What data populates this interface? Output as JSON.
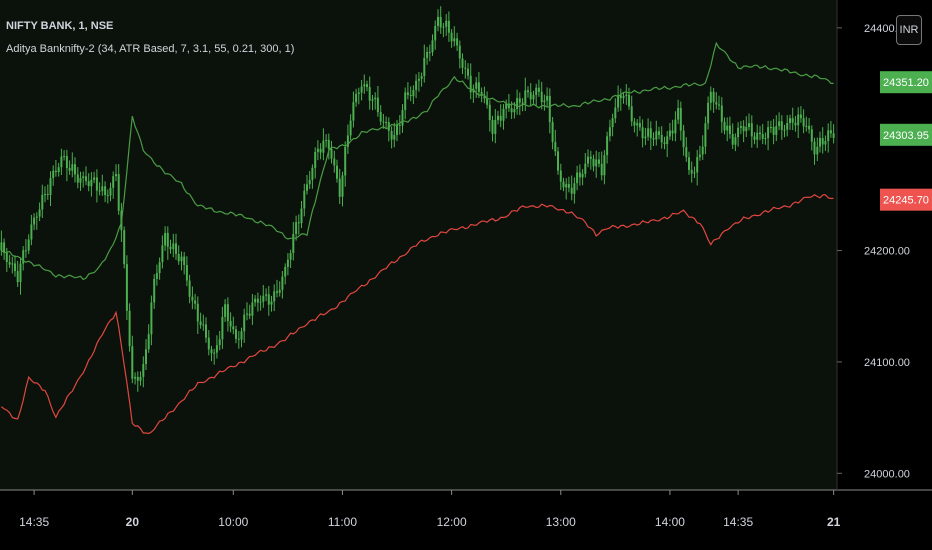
{
  "header": {
    "symbol_title": "NIFTY BANK, 1, NSE",
    "indicator_title": "Aditya Banknifty-2 (34, ATR Based, 7, 3.1, 55, 0.21, 300, 1)",
    "currency_label": "INR"
  },
  "colors": {
    "background": "#000000",
    "plot_background": "#0b120b",
    "candle": "#4caf50",
    "upper_line": "#4a9d44",
    "lower_line": "#e0473f",
    "axis_text": "#d1d4dc",
    "green_badge": "#4caf50",
    "red_badge": "#ef5350"
  },
  "chart_data": {
    "type": "line",
    "ylim": [
      23985,
      24425
    ],
    "y_ticks": [
      {
        "value": 24400,
        "label": "24400.00"
      },
      {
        "value": 24200,
        "label": "24200.00"
      },
      {
        "value": 24100,
        "label": "24100.00"
      },
      {
        "value": 24000,
        "label": "24000.00"
      }
    ],
    "x_ticks": [
      {
        "index": 12,
        "label": "14:35",
        "bold": false
      },
      {
        "index": 48,
        "label": "20",
        "bold": true
      },
      {
        "index": 85,
        "label": "10:00",
        "bold": false
      },
      {
        "index": 125,
        "label": "11:00",
        "bold": false
      },
      {
        "index": 165,
        "label": "12:00",
        "bold": false
      },
      {
        "index": 205,
        "label": "13:00",
        "bold": false
      },
      {
        "index": 245,
        "label": "14:00",
        "bold": false
      },
      {
        "index": 270,
        "label": "14:35",
        "bold": false
      },
      {
        "index": 305,
        "label": "21",
        "bold": true
      }
    ],
    "price_badges": [
      {
        "value": 24351.2,
        "label": "24351.20",
        "color": "green"
      },
      {
        "value": 24303.95,
        "label": "24303.95",
        "color": "green"
      },
      {
        "value": 24245.7,
        "label": "24245.70",
        "color": "red"
      }
    ],
    "bar_count": 306,
    "series": [
      {
        "role": "price-candles",
        "anchors": [
          [
            0,
            24200
          ],
          [
            6,
            24180
          ],
          [
            10,
            24210
          ],
          [
            14,
            24240
          ],
          [
            18,
            24265
          ],
          [
            22,
            24280
          ],
          [
            27,
            24270
          ],
          [
            32,
            24262
          ],
          [
            38,
            24250
          ],
          [
            42,
            24270
          ],
          [
            44,
            24215
          ],
          [
            48,
            24080
          ],
          [
            52,
            24095
          ],
          [
            56,
            24170
          ],
          [
            60,
            24210
          ],
          [
            66,
            24195
          ],
          [
            70,
            24150
          ],
          [
            74,
            24130
          ],
          [
            78,
            24105
          ],
          [
            82,
            24145
          ],
          [
            86,
            24120
          ],
          [
            90,
            24145
          ],
          [
            95,
            24155
          ],
          [
            100,
            24160
          ],
          [
            104,
            24180
          ],
          [
            108,
            24220
          ],
          [
            112,
            24262
          ],
          [
            116,
            24290
          ],
          [
            120,
            24295
          ],
          [
            124,
            24255
          ],
          [
            128,
            24320
          ],
          [
            132,
            24350
          ],
          [
            136,
            24340
          ],
          [
            140,
            24312
          ],
          [
            144,
            24300
          ],
          [
            148,
            24340
          ],
          [
            152,
            24345
          ],
          [
            156,
            24375
          ],
          [
            160,
            24410
          ],
          [
            164,
            24395
          ],
          [
            168,
            24375
          ],
          [
            172,
            24350
          ],
          [
            176,
            24340
          ],
          [
            180,
            24310
          ],
          [
            184,
            24330
          ],
          [
            188,
            24325
          ],
          [
            192,
            24340
          ],
          [
            196,
            24345
          ],
          [
            200,
            24330
          ],
          [
            204,
            24270
          ],
          [
            208,
            24255
          ],
          [
            212,
            24265
          ],
          [
            216,
            24285
          ],
          [
            220,
            24275
          ],
          [
            224,
            24320
          ],
          [
            228,
            24345
          ],
          [
            232,
            24315
          ],
          [
            236,
            24300
          ],
          [
            240,
            24305
          ],
          [
            244,
            24300
          ],
          [
            248,
            24320
          ],
          [
            252,
            24270
          ],
          [
            256,
            24285
          ],
          [
            260,
            24340
          ],
          [
            264,
            24320
          ],
          [
            268,
            24300
          ],
          [
            272,
            24310
          ],
          [
            276,
            24305
          ],
          [
            280,
            24305
          ],
          [
            286,
            24310
          ],
          [
            290,
            24320
          ],
          [
            294,
            24315
          ],
          [
            298,
            24290
          ],
          [
            302,
            24305
          ],
          [
            305,
            24304
          ]
        ]
      },
      {
        "role": "upper-band",
        "anchors": [
          [
            0,
            24200
          ],
          [
            10,
            24190
          ],
          [
            20,
            24178
          ],
          [
            30,
            24175
          ],
          [
            36,
            24185
          ],
          [
            40,
            24200
          ],
          [
            44,
            24225
          ],
          [
            48,
            24320
          ],
          [
            52,
            24290
          ],
          [
            56,
            24280
          ],
          [
            60,
            24270
          ],
          [
            66,
            24260
          ],
          [
            72,
            24240
          ],
          [
            80,
            24235
          ],
          [
            90,
            24230
          ],
          [
            100,
            24220
          ],
          [
            106,
            24210
          ],
          [
            112,
            24215
          ],
          [
            116,
            24255
          ],
          [
            120,
            24290
          ],
          [
            126,
            24295
          ],
          [
            132,
            24305
          ],
          [
            138,
            24310
          ],
          [
            144,
            24312
          ],
          [
            150,
            24318
          ],
          [
            156,
            24325
          ],
          [
            160,
            24340
          ],
          [
            166,
            24355
          ],
          [
            172,
            24345
          ],
          [
            180,
            24335
          ],
          [
            190,
            24330
          ],
          [
            200,
            24330
          ],
          [
            210,
            24330
          ],
          [
            220,
            24335
          ],
          [
            230,
            24342
          ],
          [
            240,
            24345
          ],
          [
            250,
            24348
          ],
          [
            258,
            24350
          ],
          [
            262,
            24385
          ],
          [
            270,
            24365
          ],
          [
            280,
            24365
          ],
          [
            290,
            24360
          ],
          [
            300,
            24355
          ],
          [
            305,
            24351
          ]
        ]
      },
      {
        "role": "lower-band",
        "anchors": [
          [
            0,
            24060
          ],
          [
            6,
            24048
          ],
          [
            10,
            24085
          ],
          [
            16,
            24075
          ],
          [
            20,
            24050
          ],
          [
            26,
            24075
          ],
          [
            32,
            24100
          ],
          [
            38,
            24130
          ],
          [
            42,
            24145
          ],
          [
            44,
            24115
          ],
          [
            48,
            24045
          ],
          [
            54,
            24035
          ],
          [
            60,
            24050
          ],
          [
            66,
            24065
          ],
          [
            72,
            24080
          ],
          [
            80,
            24090
          ],
          [
            88,
            24100
          ],
          [
            96,
            24110
          ],
          [
            104,
            24120
          ],
          [
            112,
            24135
          ],
          [
            120,
            24145
          ],
          [
            128,
            24160
          ],
          [
            136,
            24175
          ],
          [
            144,
            24190
          ],
          [
            152,
            24205
          ],
          [
            160,
            24215
          ],
          [
            168,
            24220
          ],
          [
            176,
            24225
          ],
          [
            184,
            24230
          ],
          [
            192,
            24240
          ],
          [
            200,
            24240
          ],
          [
            208,
            24235
          ],
          [
            214,
            24225
          ],
          [
            218,
            24215
          ],
          [
            222,
            24220
          ],
          [
            228,
            24222
          ],
          [
            236,
            24225
          ],
          [
            244,
            24230
          ],
          [
            250,
            24235
          ],
          [
            256,
            24225
          ],
          [
            260,
            24205
          ],
          [
            266,
            24220
          ],
          [
            272,
            24228
          ],
          [
            280,
            24235
          ],
          [
            288,
            24240
          ],
          [
            296,
            24248
          ],
          [
            302,
            24250
          ],
          [
            305,
            24246
          ]
        ]
      }
    ]
  }
}
